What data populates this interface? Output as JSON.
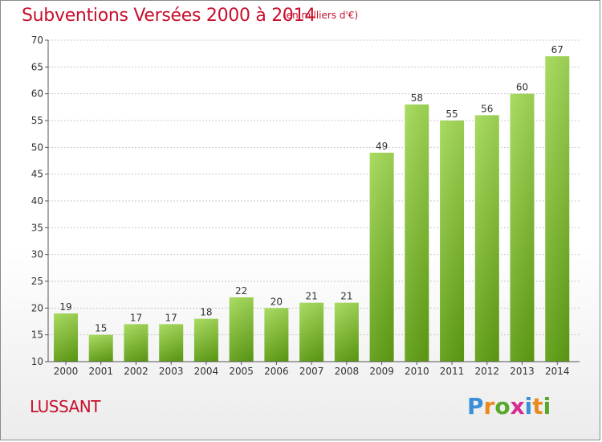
{
  "header": {
    "title": "Subventions Versées 2000 à 2014",
    "subtitle": "(en milliers d'€)"
  },
  "footer": {
    "commune": "LUSSANT",
    "logo": "Proxiti"
  },
  "colors": {
    "title": "#c8102e",
    "bar_top": "#9fd64e",
    "bar_bottom": "#5f9e12",
    "grid": "#c8c8c8",
    "axis": "#555555"
  },
  "chart_data": {
    "type": "bar",
    "title": "Subventions Versées 2000 à 2014",
    "subtitle": "(en milliers d'€)",
    "categories": [
      "2000",
      "2001",
      "2002",
      "2003",
      "2004",
      "2005",
      "2006",
      "2007",
      "2008",
      "2009",
      "2010",
      "2011",
      "2012",
      "2013",
      "2014"
    ],
    "values": [
      19,
      15,
      17,
      17,
      18,
      22,
      20,
      21,
      21,
      49,
      58,
      55,
      56,
      60,
      67
    ],
    "ylim": [
      10,
      70
    ],
    "yticks": [
      10,
      15,
      20,
      25,
      30,
      35,
      40,
      45,
      50,
      55,
      60,
      65,
      70
    ],
    "grid": true,
    "data_labels": true
  }
}
